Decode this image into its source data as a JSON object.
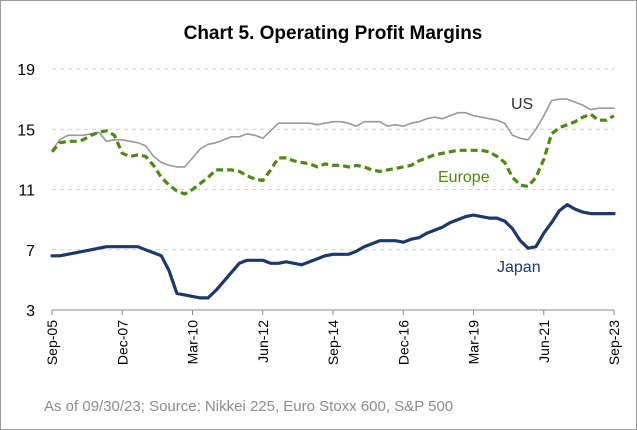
{
  "chart_data": {
    "type": "line",
    "title": "Chart 5. Operating Profit Margins",
    "xlabel": "",
    "ylabel": "",
    "ylim": [
      3,
      19
    ],
    "yticks": [
      3,
      7,
      11,
      15,
      19
    ],
    "x_start": "2005-09",
    "x_end": "2023-09",
    "xtick_labels": [
      "Sep-05",
      "Dec-07",
      "Mar-10",
      "Jun-12",
      "Sep-14",
      "Dec-16",
      "Mar-19",
      "Jun-21",
      "Sep-23"
    ],
    "grid": true,
    "series": [
      {
        "name": "US",
        "color": "#999999",
        "style": "solid",
        "points": [
          [
            "2005-09",
            13.6
          ],
          [
            "2005-12",
            14.3
          ],
          [
            "2006-03",
            14.6
          ],
          [
            "2006-06",
            14.6
          ],
          [
            "2006-09",
            14.6
          ],
          [
            "2006-12",
            14.7
          ],
          [
            "2007-03",
            14.8
          ],
          [
            "2007-06",
            14.2
          ],
          [
            "2007-09",
            14.3
          ],
          [
            "2007-12",
            14.3
          ],
          [
            "2008-03",
            14.2
          ],
          [
            "2008-06",
            14.1
          ],
          [
            "2008-09",
            13.9
          ],
          [
            "2008-12",
            13.2
          ],
          [
            "2009-03",
            12.8
          ],
          [
            "2009-06",
            12.6
          ],
          [
            "2009-09",
            12.5
          ],
          [
            "2009-12",
            12.5
          ],
          [
            "2010-03",
            13.1
          ],
          [
            "2010-06",
            13.7
          ],
          [
            "2010-09",
            14.0
          ],
          [
            "2010-12",
            14.1
          ],
          [
            "2011-03",
            14.3
          ],
          [
            "2011-06",
            14.5
          ],
          [
            "2011-09",
            14.5
          ],
          [
            "2011-12",
            14.7
          ],
          [
            "2012-03",
            14.6
          ],
          [
            "2012-06",
            14.4
          ],
          [
            "2012-09",
            14.9
          ],
          [
            "2012-12",
            15.4
          ],
          [
            "2013-03",
            15.4
          ],
          [
            "2013-06",
            15.4
          ],
          [
            "2013-09",
            15.4
          ],
          [
            "2013-12",
            15.4
          ],
          [
            "2014-03",
            15.3
          ],
          [
            "2014-06",
            15.4
          ],
          [
            "2014-09",
            15.5
          ],
          [
            "2014-12",
            15.5
          ],
          [
            "2015-03",
            15.4
          ],
          [
            "2015-06",
            15.2
          ],
          [
            "2015-09",
            15.5
          ],
          [
            "2015-12",
            15.5
          ],
          [
            "2016-03",
            15.5
          ],
          [
            "2016-06",
            15.2
          ],
          [
            "2016-09",
            15.3
          ],
          [
            "2016-12",
            15.2
          ],
          [
            "2017-03",
            15.4
          ],
          [
            "2017-06",
            15.5
          ],
          [
            "2017-09",
            15.7
          ],
          [
            "2017-12",
            15.8
          ],
          [
            "2018-03",
            15.7
          ],
          [
            "2018-06",
            15.9
          ],
          [
            "2018-09",
            16.1
          ],
          [
            "2018-12",
            16.1
          ],
          [
            "2019-03",
            15.9
          ],
          [
            "2019-06",
            15.8
          ],
          [
            "2019-09",
            15.7
          ],
          [
            "2019-12",
            15.6
          ],
          [
            "2020-03",
            15.4
          ],
          [
            "2020-06",
            14.6
          ],
          [
            "2020-09",
            14.4
          ],
          [
            "2020-12",
            14.3
          ],
          [
            "2021-03",
            15.0
          ],
          [
            "2021-06",
            15.9
          ],
          [
            "2021-09",
            16.9
          ],
          [
            "2021-12",
            17.0
          ],
          [
            "2022-03",
            17.0
          ],
          [
            "2022-06",
            16.8
          ],
          [
            "2022-09",
            16.6
          ],
          [
            "2022-12",
            16.3
          ],
          [
            "2023-03",
            16.4
          ],
          [
            "2023-06",
            16.4
          ],
          [
            "2023-09",
            16.4
          ]
        ]
      },
      {
        "name": "Europe",
        "color": "#4f8a10",
        "style": "dashed",
        "points": [
          [
            "2005-09",
            13.5
          ],
          [
            "2005-12",
            14.1
          ],
          [
            "2006-03",
            14.2
          ],
          [
            "2006-06",
            14.2
          ],
          [
            "2006-09",
            14.3
          ],
          [
            "2006-12",
            14.6
          ],
          [
            "2007-03",
            14.8
          ],
          [
            "2007-06",
            14.9
          ],
          [
            "2007-09",
            14.6
          ],
          [
            "2007-12",
            13.4
          ],
          [
            "2008-03",
            13.2
          ],
          [
            "2008-06",
            13.3
          ],
          [
            "2008-09",
            13.2
          ],
          [
            "2008-12",
            12.6
          ],
          [
            "2009-03",
            11.8
          ],
          [
            "2009-06",
            11.3
          ],
          [
            "2009-09",
            10.9
          ],
          [
            "2009-12",
            10.7
          ],
          [
            "2010-03",
            11.0
          ],
          [
            "2010-06",
            11.4
          ],
          [
            "2010-09",
            11.8
          ],
          [
            "2010-12",
            12.3
          ],
          [
            "2011-03",
            12.3
          ],
          [
            "2011-06",
            12.3
          ],
          [
            "2011-09",
            12.2
          ],
          [
            "2011-12",
            11.9
          ],
          [
            "2012-03",
            11.7
          ],
          [
            "2012-06",
            11.6
          ],
          [
            "2012-09",
            12.3
          ],
          [
            "2012-12",
            13.1
          ],
          [
            "2013-03",
            13.1
          ],
          [
            "2013-06",
            12.9
          ],
          [
            "2013-09",
            12.8
          ],
          [
            "2013-12",
            12.7
          ],
          [
            "2014-03",
            12.5
          ],
          [
            "2014-06",
            12.7
          ],
          [
            "2014-09",
            12.6
          ],
          [
            "2014-12",
            12.6
          ],
          [
            "2015-03",
            12.5
          ],
          [
            "2015-06",
            12.6
          ],
          [
            "2015-09",
            12.5
          ],
          [
            "2015-12",
            12.3
          ],
          [
            "2016-03",
            12.2
          ],
          [
            "2016-06",
            12.3
          ],
          [
            "2016-09",
            12.4
          ],
          [
            "2016-12",
            12.5
          ],
          [
            "2017-03",
            12.6
          ],
          [
            "2017-06",
            12.9
          ],
          [
            "2017-09",
            13.1
          ],
          [
            "2017-12",
            13.3
          ],
          [
            "2018-03",
            13.4
          ],
          [
            "2018-06",
            13.5
          ],
          [
            "2018-09",
            13.6
          ],
          [
            "2018-12",
            13.6
          ],
          [
            "2019-03",
            13.6
          ],
          [
            "2019-06",
            13.6
          ],
          [
            "2019-09",
            13.5
          ],
          [
            "2019-12",
            13.2
          ],
          [
            "2020-03",
            12.8
          ],
          [
            "2020-06",
            11.8
          ],
          [
            "2020-09",
            11.3
          ],
          [
            "2020-12",
            11.2
          ],
          [
            "2021-03",
            11.8
          ],
          [
            "2021-06",
            13.0
          ],
          [
            "2021-09",
            14.7
          ],
          [
            "2021-12",
            15.1
          ],
          [
            "2022-03",
            15.3
          ],
          [
            "2022-06",
            15.5
          ],
          [
            "2022-09",
            15.8
          ],
          [
            "2022-12",
            16.0
          ],
          [
            "2023-03",
            15.6
          ],
          [
            "2023-06",
            15.6
          ],
          [
            "2023-09",
            15.9
          ]
        ]
      },
      {
        "name": "Japan",
        "color": "#1b3a6b",
        "style": "solid",
        "points": [
          [
            "2005-09",
            6.6
          ],
          [
            "2005-12",
            6.6
          ],
          [
            "2006-03",
            6.7
          ],
          [
            "2006-06",
            6.8
          ],
          [
            "2006-09",
            6.9
          ],
          [
            "2006-12",
            7.0
          ],
          [
            "2007-03",
            7.1
          ],
          [
            "2007-06",
            7.2
          ],
          [
            "2007-09",
            7.2
          ],
          [
            "2007-12",
            7.2
          ],
          [
            "2008-03",
            7.2
          ],
          [
            "2008-06",
            7.2
          ],
          [
            "2008-09",
            7.0
          ],
          [
            "2008-12",
            6.8
          ],
          [
            "2009-03",
            6.6
          ],
          [
            "2009-06",
            5.6
          ],
          [
            "2009-09",
            4.1
          ],
          [
            "2009-12",
            4.0
          ],
          [
            "2010-03",
            3.9
          ],
          [
            "2010-06",
            3.8
          ],
          [
            "2010-09",
            3.8
          ],
          [
            "2010-12",
            4.3
          ],
          [
            "2011-03",
            4.9
          ],
          [
            "2011-06",
            5.5
          ],
          [
            "2011-09",
            6.1
          ],
          [
            "2011-12",
            6.3
          ],
          [
            "2012-03",
            6.3
          ],
          [
            "2012-06",
            6.3
          ],
          [
            "2012-09",
            6.1
          ],
          [
            "2012-12",
            6.1
          ],
          [
            "2013-03",
            6.2
          ],
          [
            "2013-06",
            6.1
          ],
          [
            "2013-09",
            6.0
          ],
          [
            "2013-12",
            6.2
          ],
          [
            "2014-03",
            6.4
          ],
          [
            "2014-06",
            6.6
          ],
          [
            "2014-09",
            6.7
          ],
          [
            "2014-12",
            6.7
          ],
          [
            "2015-03",
            6.7
          ],
          [
            "2015-06",
            6.9
          ],
          [
            "2015-09",
            7.2
          ],
          [
            "2015-12",
            7.4
          ],
          [
            "2016-03",
            7.6
          ],
          [
            "2016-06",
            7.6
          ],
          [
            "2016-09",
            7.6
          ],
          [
            "2016-12",
            7.5
          ],
          [
            "2017-03",
            7.7
          ],
          [
            "2017-06",
            7.8
          ],
          [
            "2017-09",
            8.1
          ],
          [
            "2017-12",
            8.3
          ],
          [
            "2018-03",
            8.5
          ],
          [
            "2018-06",
            8.8
          ],
          [
            "2018-09",
            9.0
          ],
          [
            "2018-12",
            9.2
          ],
          [
            "2019-03",
            9.3
          ],
          [
            "2019-06",
            9.2
          ],
          [
            "2019-09",
            9.1
          ],
          [
            "2019-12",
            9.1
          ],
          [
            "2020-03",
            8.9
          ],
          [
            "2020-06",
            8.4
          ],
          [
            "2020-09",
            7.6
          ],
          [
            "2020-12",
            7.1
          ],
          [
            "2021-03",
            7.2
          ],
          [
            "2021-06",
            8.1
          ],
          [
            "2021-09",
            8.8
          ],
          [
            "2021-12",
            9.6
          ],
          [
            "2022-03",
            10.0
          ],
          [
            "2022-06",
            9.7
          ],
          [
            "2022-09",
            9.5
          ],
          [
            "2022-12",
            9.4
          ],
          [
            "2023-03",
            9.4
          ],
          [
            "2023-06",
            9.4
          ],
          [
            "2023-09",
            9.4
          ]
        ]
      }
    ]
  },
  "source_note": "As of 09/30/23; Source: Nikkei 225, Euro Stoxx 600, S&P 500"
}
